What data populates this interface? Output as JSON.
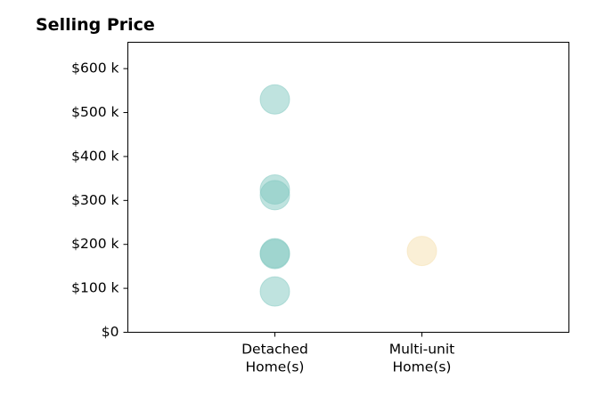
{
  "chart_data": {
    "type": "scatter",
    "title": "Selling Price",
    "categories": [
      "Detached\nHome(s)",
      "Multi-unit\nHome(s)"
    ],
    "series": [
      {
        "category": "Detached\nHome(s)",
        "color": "#80c8c0",
        "values": [
          530000,
          325000,
          312000,
          180000,
          178000,
          93000
        ]
      },
      {
        "category": "Multi-unit\nHome(s)",
        "color": "#f5dfae",
        "values": [
          185000
        ]
      }
    ],
    "y_ticks": [
      0,
      100000,
      200000,
      300000,
      400000,
      500000,
      600000
    ],
    "y_tick_labels": [
      "$0",
      "$100 k",
      "$200 k",
      "$300 k",
      "$400 k",
      "$500 k",
      "$600 k"
    ],
    "ylim": [
      0,
      660000
    ],
    "xlim": [
      0,
      3
    ],
    "grid": false,
    "xlabel": "",
    "ylabel": ""
  }
}
